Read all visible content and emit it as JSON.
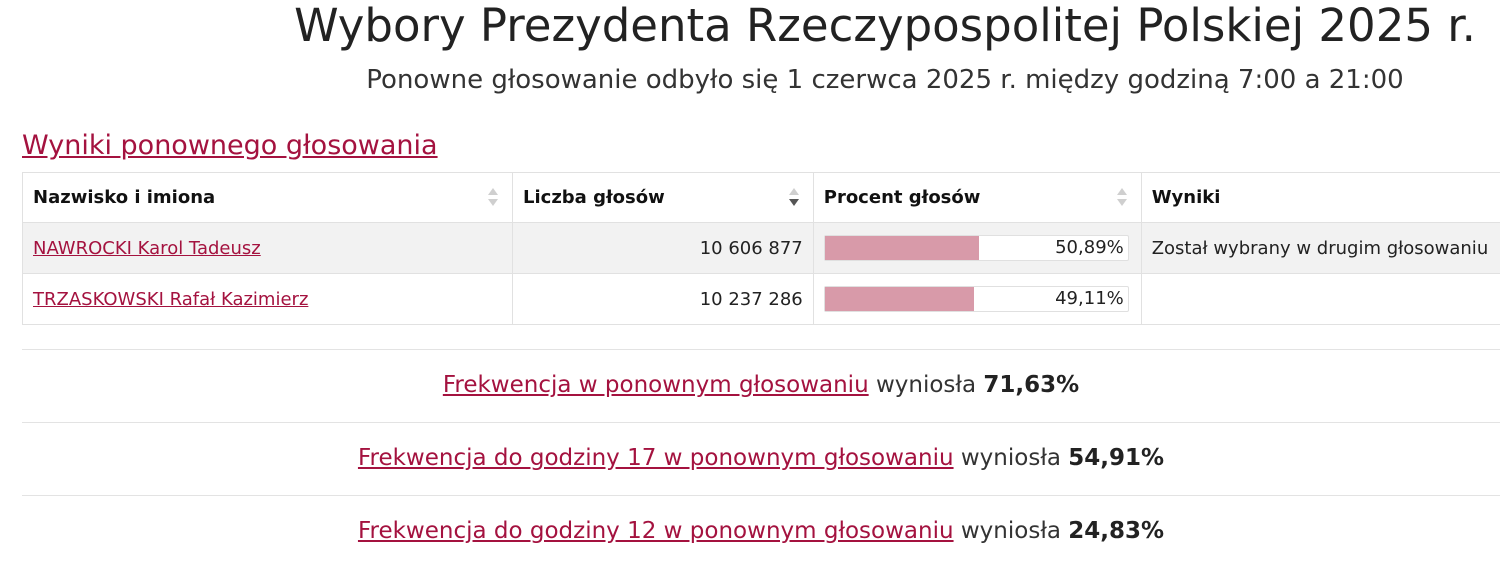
{
  "header": {
    "title": "Wybory Prezydenta Rzeczypospolitej Polskiej 2025 r.",
    "subtitle": "Ponowne głosowanie odbyło się 1 czerwca 2025 r. między godziną 7:00 a 21:00"
  },
  "section": {
    "link_label": "Wyniki ponownego głosowania"
  },
  "table": {
    "headers": [
      "Nazwisko i imiona",
      "Liczba głosów",
      "Procent głosów",
      "Wyniki"
    ],
    "sort": {
      "column": "Liczba głosów",
      "direction": "descending"
    },
    "rows": [
      {
        "name": "NAWROCKI Karol Tadeusz",
        "votes": "10 606 877",
        "percent_label": "50,89%",
        "percent": 50.89,
        "result": "Został wybrany w drugim głosowaniu"
      },
      {
        "name": "TRZASKOWSKI Rafał Kazimierz",
        "votes": "10 237 286",
        "percent_label": "49,11%",
        "percent": 49.11,
        "result": ""
      }
    ]
  },
  "turnout": [
    {
      "link": "Frekwencja w ponownym głosowaniu",
      "text": "wyniosła",
      "value": "71,63%"
    },
    {
      "link": "Frekwencja do godziny 17 w ponownym głosowaniu",
      "text": "wyniosła",
      "value": "54,91%"
    },
    {
      "link": "Frekwencja do godziny 12 w ponownym głosowaniu",
      "text": "wyniosła",
      "value": "24,83%"
    }
  ],
  "colors": {
    "accent": "#a4123f",
    "bar": "#d89aa9",
    "row_shade": "#f2f2f2"
  }
}
